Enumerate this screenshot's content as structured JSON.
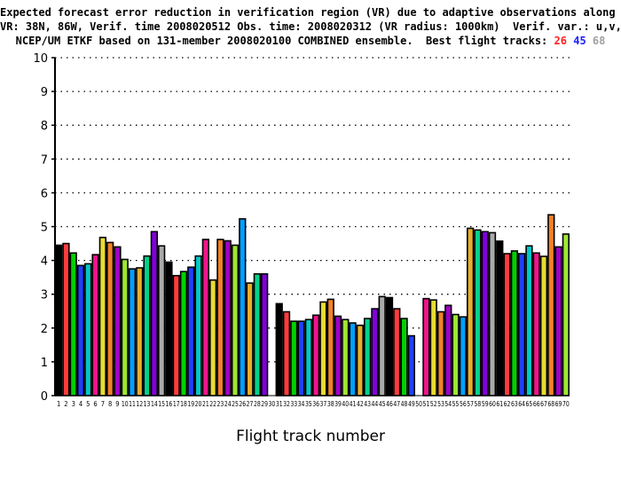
{
  "chart_data": {
    "type": "bar",
    "title_lines": [
      "Expected forecast error reduction in verification region (VR) due to adaptive observations along flight tracks.",
      "VR: 38N, 86W, Verif. time 2008020512 Obs. time: 2008020312 (VR radius: 1000km)  Verif. var.: u,v,T",
      "NCEP/UM ETKF based on 131-member 2008020100 COMBINED ensemble.  Best flight tracks:"
    ],
    "best_tracks": [
      {
        "label": "26",
        "color": "#ff2020"
      },
      {
        "label": "45",
        "color": "#2020ff"
      },
      {
        "label": "68",
        "color": "#a0a0a0"
      }
    ],
    "xlabel": "Flight track number",
    "ylabel": "",
    "ylim": [
      0,
      10
    ],
    "yticks": [
      "0",
      "1",
      "2",
      "3",
      "4",
      "5",
      "6",
      "7",
      "8",
      "9",
      "10"
    ],
    "grid": true,
    "categories": [
      "1",
      "2",
      "3",
      "4",
      "5",
      "6",
      "7",
      "8",
      "9",
      "10",
      "11",
      "12",
      "13",
      "14",
      "15",
      "16",
      "17",
      "18",
      "19",
      "20",
      "21",
      "22",
      "23",
      "24",
      "25",
      "26",
      "27",
      "28",
      "29",
      "30",
      "31",
      "32",
      "33",
      "34",
      "35",
      "36",
      "37",
      "38",
      "39",
      "40",
      "41",
      "42",
      "43",
      "44",
      "45",
      "46",
      "47",
      "48",
      "49",
      "50",
      "51",
      "52",
      "53",
      "54",
      "55",
      "56",
      "57",
      "58",
      "59",
      "60",
      "61",
      "62",
      "63",
      "64",
      "65",
      "66",
      "67",
      "68",
      "69",
      "70"
    ],
    "values": [
      4.45,
      4.5,
      4.22,
      3.85,
      3.9,
      4.17,
      4.68,
      4.53,
      4.4,
      4.03,
      3.75,
      3.78,
      4.13,
      4.85,
      4.43,
      3.95,
      3.55,
      3.67,
      3.8,
      4.13,
      4.62,
      3.42,
      4.62,
      4.58,
      4.45,
      5.23,
      3.33,
      3.6,
      3.6,
      0,
      2.72,
      2.48,
      2.2,
      2.2,
      2.25,
      2.38,
      2.77,
      2.85,
      2.35,
      2.25,
      2.15,
      2.08,
      2.28,
      2.57,
      2.93,
      2.9,
      2.57,
      2.28,
      1.77,
      0,
      2.87,
      2.83,
      2.48,
      2.67,
      2.4,
      2.33,
      4.95,
      4.9,
      4.85,
      4.82,
      4.57,
      4.2,
      4.28,
      4.2,
      4.43,
      4.22,
      4.12,
      5.35,
      4.4,
      4.78
    ],
    "color_cycle": [
      "#000000",
      "#ff3c3c",
      "#00d000",
      "#2040ff",
      "#00c8c8",
      "#f0148c",
      "#e6dc32",
      "#f08228",
      "#a000c8",
      "#a0e632",
      "#00a0ff",
      "#e6af2d",
      "#00d28c",
      "#8200dc",
      "#aaaaaa"
    ]
  }
}
